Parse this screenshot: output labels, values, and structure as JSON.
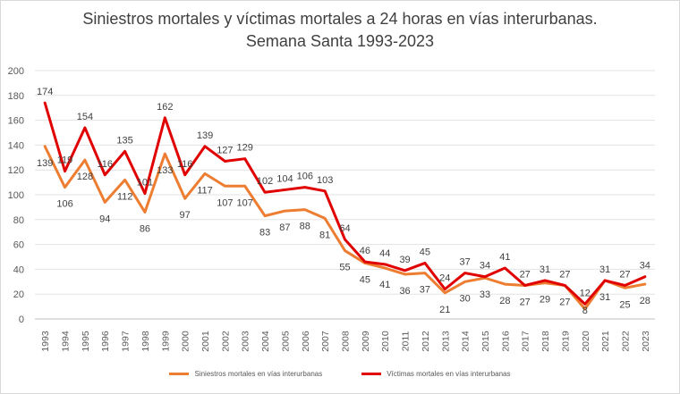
{
  "chart_data": {
    "type": "line",
    "title": "Siniestros mortales y víctimas mortales a 24 horas en vías interurbanas.",
    "subtitle": "Semana Santa 1993-2023",
    "xlabel": "",
    "ylabel": "",
    "ylim": [
      0,
      200
    ],
    "yticks": [
      0,
      20,
      40,
      60,
      80,
      100,
      120,
      140,
      160,
      180,
      200
    ],
    "grid": true,
    "legend_position": "bottom",
    "x": [
      "1993",
      "1994",
      "1995",
      "1996",
      "1997",
      "1998",
      "1999",
      "2000",
      "2001",
      "2002",
      "2003",
      "2004",
      "2005",
      "2006",
      "2007",
      "2008",
      "2009",
      "2010",
      "2011",
      "2012",
      "2013",
      "2014",
      "2015",
      "2016",
      "2017",
      "2018",
      "2019",
      "2020",
      "2021",
      "2022",
      "2023"
    ],
    "series": [
      {
        "name": "Siniestros mortales en vías interurbanas",
        "color": "#ED7D31",
        "values": [
          139,
          106,
          128,
          94,
          112,
          86,
          133,
          97,
          117,
          107,
          107,
          83,
          87,
          88,
          81,
          55,
          45,
          41,
          36,
          37,
          21,
          30,
          33,
          28,
          27,
          29,
          27,
          8,
          31,
          25,
          28
        ]
      },
      {
        "name": "Víctimas mortales en vías interurbanas",
        "color": "#E00000",
        "values": [
          174,
          119,
          154,
          116,
          135,
          101,
          162,
          116,
          139,
          127,
          129,
          102,
          104,
          106,
          103,
          64,
          46,
          44,
          39,
          45,
          24,
          37,
          34,
          41,
          27,
          31,
          27,
          12,
          31,
          27,
          34
        ]
      }
    ]
  }
}
